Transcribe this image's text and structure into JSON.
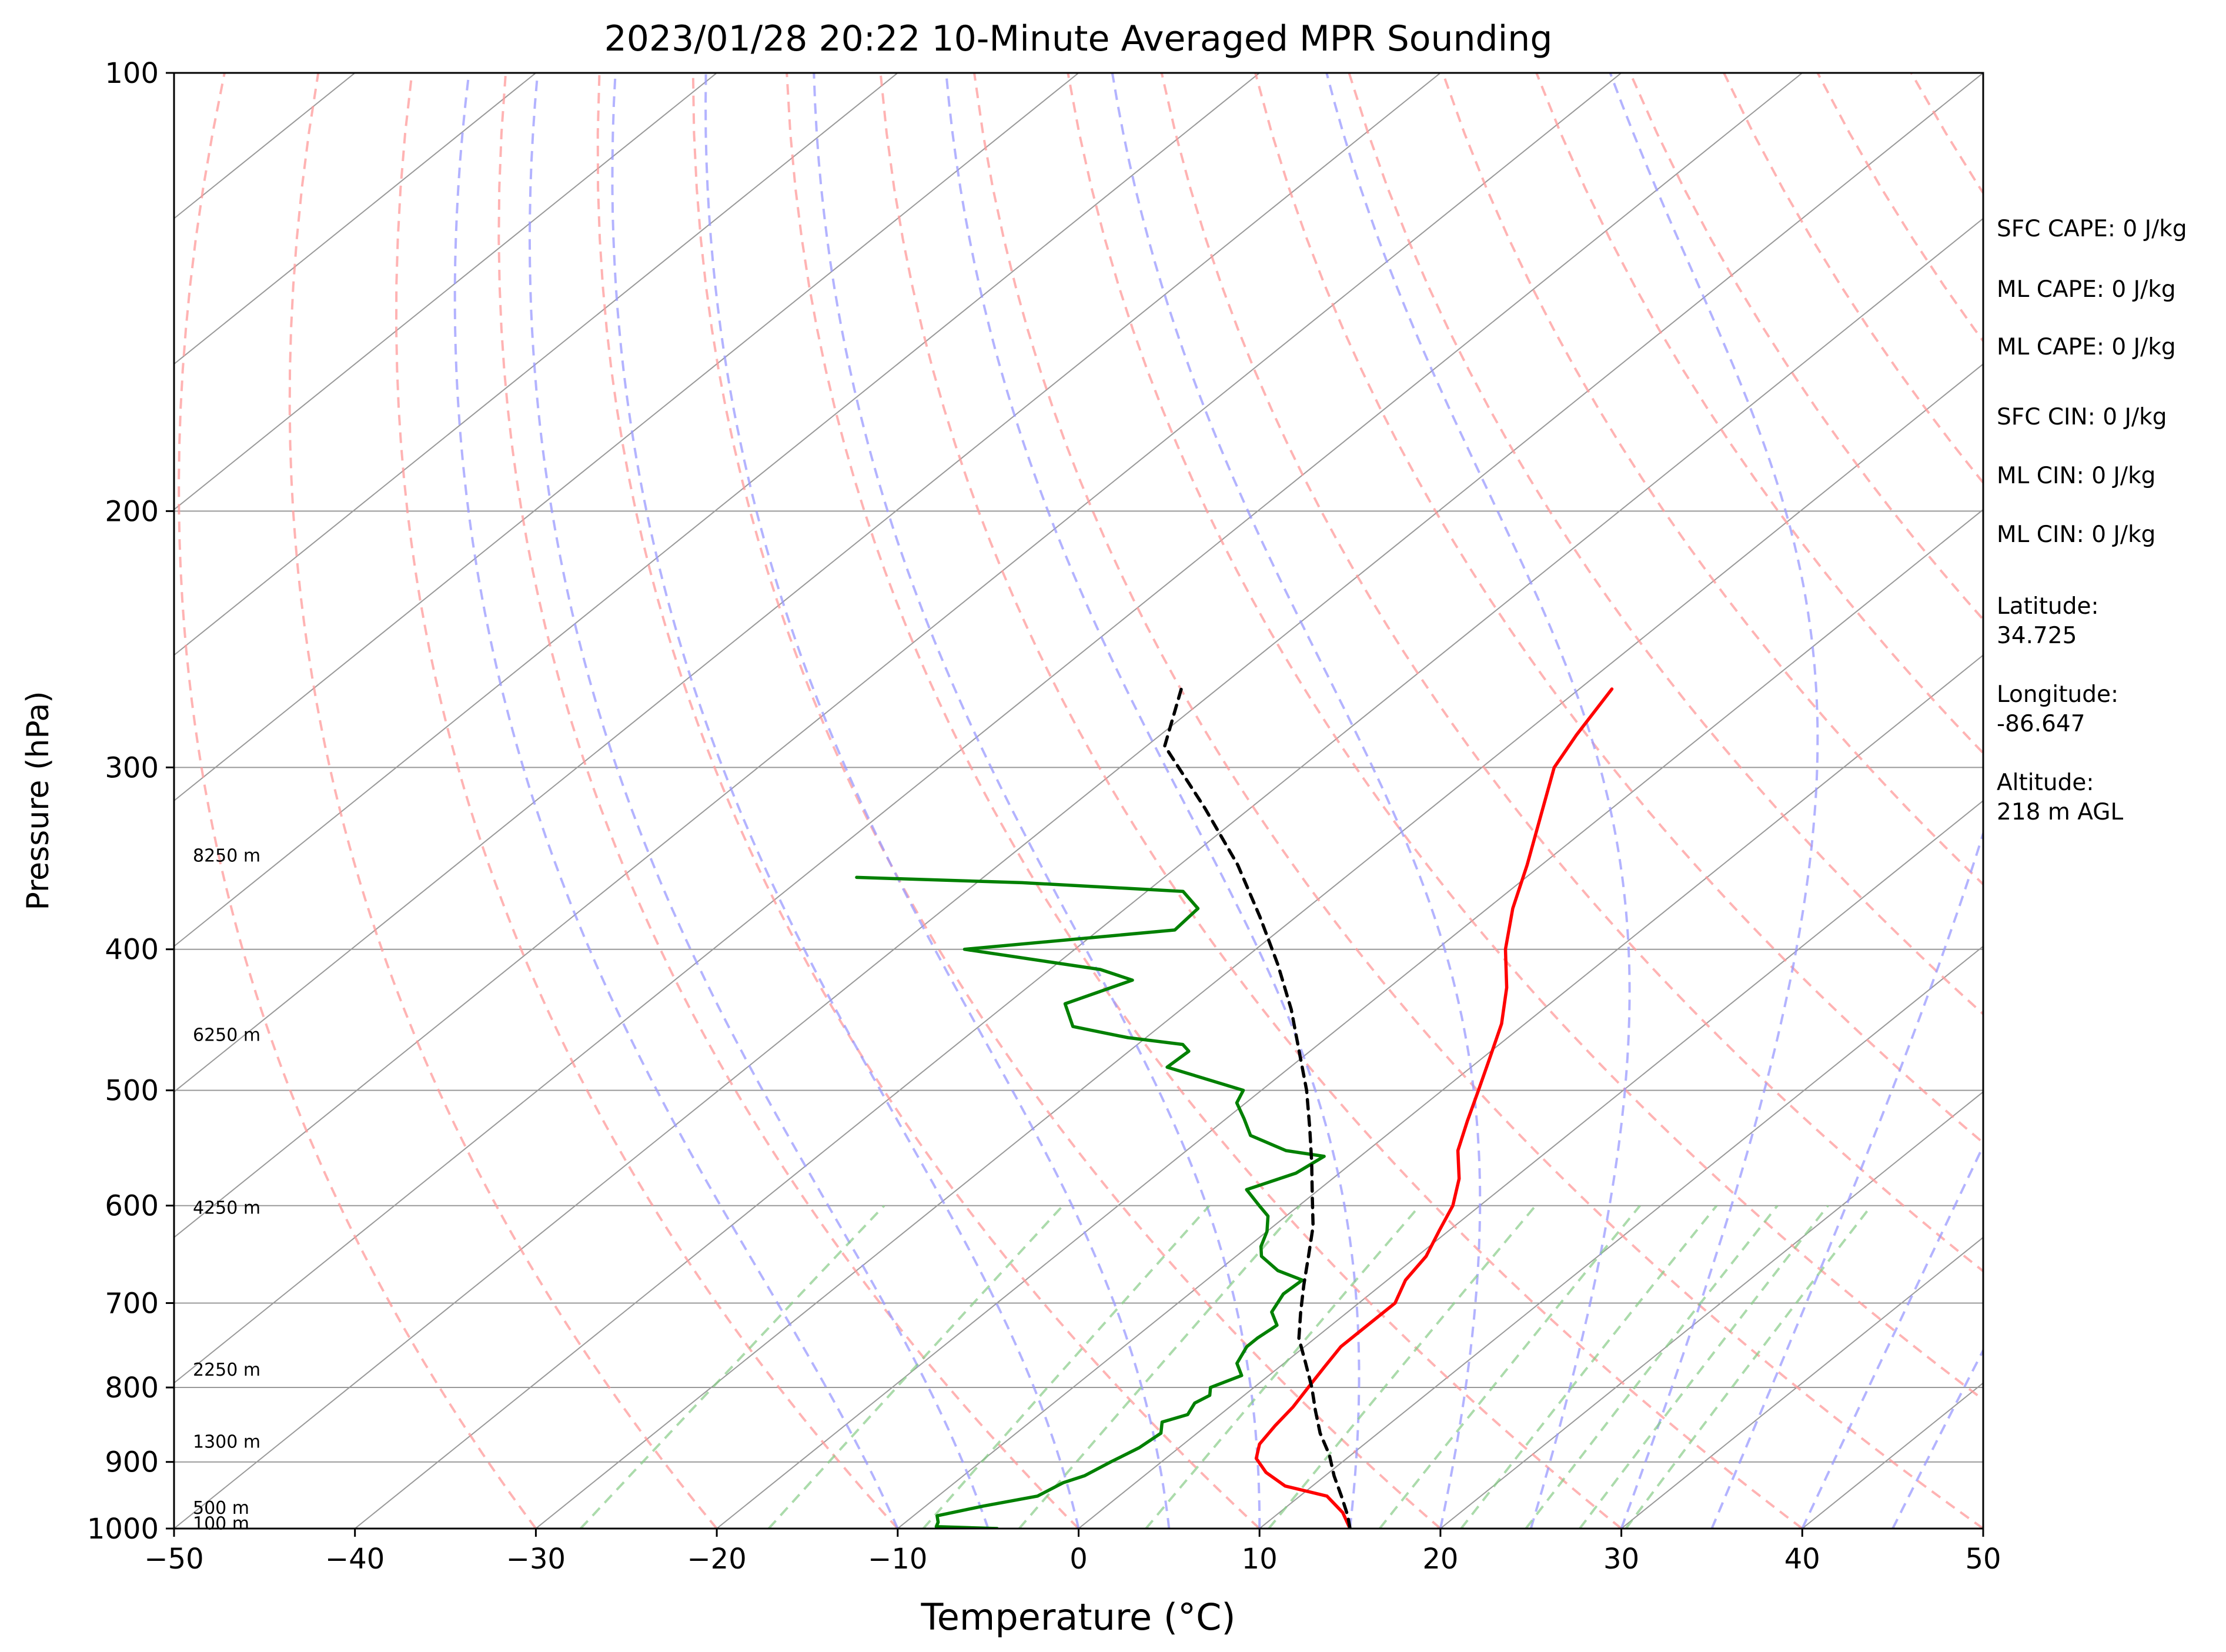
{
  "chart_data": {
    "type": "line",
    "title": "2023/01/28 20:22 10-Minute Averaged MPR Sounding",
    "xlabel": "Temperature (°C)",
    "ylabel": "Pressure (hPa)",
    "xlim": [
      -50,
      50
    ],
    "ylim": [
      1000,
      100
    ],
    "y_scale": "log",
    "x_ticks": [
      -50,
      -40,
      -30,
      -20,
      -10,
      0,
      10,
      20,
      30,
      40,
      50
    ],
    "x_tick_labels": [
      "−50",
      "−40",
      "−30",
      "−20",
      "−10",
      "0",
      "10",
      "20",
      "30",
      "40",
      "50"
    ],
    "y_ticks": [
      1000,
      900,
      800,
      700,
      600,
      500,
      400,
      300,
      200,
      100
    ],
    "y_tick_labels": [
      "1000",
      "900",
      "800",
      "700",
      "600",
      "500",
      "400",
      "300",
      "200",
      "100"
    ],
    "grid": true,
    "skew": 1.0,
    "series": [
      {
        "color": "#ff0000",
        "style": "solid",
        "points": [
          [
            15.0,
            1000
          ],
          [
            13.5,
            975
          ],
          [
            11.5,
            950
          ],
          [
            8.5,
            935
          ],
          [
            6.5,
            915
          ],
          [
            5.0,
            895
          ],
          [
            4.2,
            875
          ],
          [
            3.8,
            850
          ],
          [
            3.5,
            825
          ],
          [
            3.0,
            800
          ],
          [
            2.5,
            775
          ],
          [
            2.0,
            750
          ],
          [
            2.0,
            725
          ],
          [
            2.0,
            700
          ],
          [
            1.0,
            675
          ],
          [
            0.5,
            650
          ],
          [
            -0.5,
            625
          ],
          [
            -1.5,
            600
          ],
          [
            -3.0,
            575
          ],
          [
            -5.0,
            550
          ],
          [
            -6.5,
            525
          ],
          [
            -8.0,
            500
          ],
          [
            -9.6,
            475
          ],
          [
            -11.3,
            450
          ],
          [
            -13.5,
            425
          ],
          [
            -16.2,
            400
          ],
          [
            -18.6,
            375
          ],
          [
            -20.8,
            350
          ],
          [
            -23.3,
            325
          ],
          [
            -26.0,
            300
          ],
          [
            -27.0,
            285
          ],
          [
            -28.2,
            265
          ]
        ]
      },
      {
        "color": "#008000",
        "style": "solid",
        "points": [
          [
            -4.5,
            1000
          ],
          [
            -8.0,
            997
          ],
          [
            -8.2,
            990
          ],
          [
            -8.7,
            980
          ],
          [
            -6.8,
            965
          ],
          [
            -4.5,
            950
          ],
          [
            -4.0,
            930
          ],
          [
            -3.3,
            920
          ],
          [
            -2.8,
            900
          ],
          [
            -2.2,
            880
          ],
          [
            -2.0,
            860
          ],
          [
            -2.7,
            845
          ],
          [
            -1.8,
            835
          ],
          [
            -2.2,
            820
          ],
          [
            -1.9,
            810
          ],
          [
            -2.4,
            800
          ],
          [
            -1.5,
            785
          ],
          [
            -2.6,
            770
          ],
          [
            -3.2,
            750
          ],
          [
            -3.2,
            740
          ],
          [
            -3.0,
            725
          ],
          [
            -4.2,
            710
          ],
          [
            -4.8,
            690
          ],
          [
            -4.7,
            675
          ],
          [
            -6.7,
            665
          ],
          [
            -8.6,
            650
          ],
          [
            -9.3,
            640
          ],
          [
            -10.0,
            625
          ],
          [
            -11.0,
            610
          ],
          [
            -12.2,
            600
          ],
          [
            -14.0,
            585
          ],
          [
            -12.4,
            570
          ],
          [
            -12.0,
            555
          ],
          [
            -14.5,
            550
          ],
          [
            -17.5,
            537
          ],
          [
            -19.0,
            523
          ],
          [
            -20.5,
            510
          ],
          [
            -21.0,
            500
          ],
          [
            -26.8,
            482
          ],
          [
            -26.7,
            470
          ],
          [
            -27.5,
            465
          ],
          [
            -31.0,
            460
          ],
          [
            -34.8,
            452
          ],
          [
            -36.8,
            436
          ],
          [
            -34.7,
            420
          ],
          [
            -37.2,
            413
          ],
          [
            -46.1,
            400
          ],
          [
            -35.8,
            388
          ],
          [
            -36.0,
            375
          ],
          [
            -38.0,
            365
          ],
          [
            -47.5,
            360
          ],
          [
            -57.0,
            357
          ]
        ]
      },
      {
        "color": "#000000",
        "style": "dashed",
        "points": [
          [
            15.0,
            1000
          ],
          [
            14.0,
            980
          ],
          [
            12.3,
            950
          ],
          [
            10.5,
            920
          ],
          [
            8.8,
            890
          ],
          [
            6.8,
            860
          ],
          [
            5.0,
            830
          ],
          [
            3.2,
            800
          ],
          [
            1.2,
            770
          ],
          [
            -0.9,
            740
          ],
          [
            -2.6,
            710
          ],
          [
            -4.3,
            680
          ],
          [
            -6.0,
            650
          ],
          [
            -7.8,
            620
          ],
          [
            -10.0,
            590
          ],
          [
            -12.3,
            560
          ],
          [
            -14.8,
            530
          ],
          [
            -17.5,
            500
          ],
          [
            -20.6,
            470
          ],
          [
            -23.9,
            440
          ],
          [
            -27.7,
            410
          ],
          [
            -32.0,
            380
          ],
          [
            -36.8,
            350
          ],
          [
            -42.5,
            320
          ],
          [
            -49.0,
            290
          ],
          [
            -52.0,
            265
          ]
        ]
      }
    ],
    "height_labels": [
      "100 m",
      "500 m",
      "1300 m",
      "2250 m",
      "4250 m",
      "6250 m",
      "8250 m"
    ],
    "stats": [
      "SFC CAPE: 0 J/kg",
      "ML CAPE: 0 J/kg",
      "ML CAPE: 0 J/kg",
      "SFC CIN: 0 J/kg",
      "ML CIN: 0 J/kg",
      "ML CIN: 0 J/kg",
      "Latitude:\n34.725",
      "Longitude:\n-86.647",
      "Altitude:\n218 m AGL"
    ],
    "reference_lines": {
      "dry_adiabats_color": "#ff9999",
      "moist_adiabats_color": "#9999ff",
      "mixing_ratio_color": "#88cc88",
      "isotherm_color": "#999999"
    }
  }
}
